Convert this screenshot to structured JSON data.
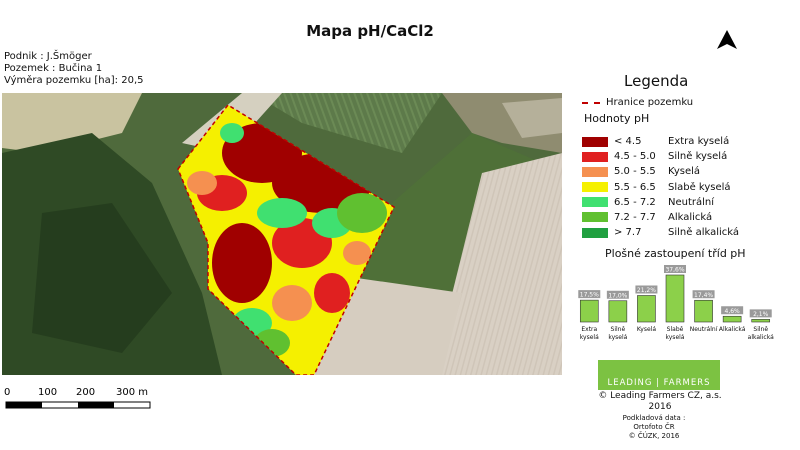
{
  "title": "Mapa pH/CaCl2",
  "info": {
    "podnik": "Podnik : J.Šmöger",
    "pozemek": "Pozemek : Bučina 1",
    "vymera": "Výměra pozemku [ha]: 20,5"
  },
  "legend": {
    "title": "Legenda",
    "boundary_label": "Hranice pozemku",
    "boundary_color": "#c00000",
    "values_title": "Hodnoty pH",
    "classes": [
      {
        "range": "< 4.5",
        "name": "Extra kyselá",
        "color": "#a00000"
      },
      {
        "range": "4.5 - 5.0",
        "name": "Silně kyselá",
        "color": "#e02020"
      },
      {
        "range": "5.0 - 5.5",
        "name": "Kyselá",
        "color": "#f59050"
      },
      {
        "range": "5.5 - 6.5",
        "name": "Slabě kyselá",
        "color": "#f5f000"
      },
      {
        "range": "6.5 - 7.2",
        "name": "Neutrální",
        "color": "#40e070"
      },
      {
        "range": "7.2 - 7.7",
        "name": "Alkalická",
        "color": "#60c030"
      },
      {
        "range": "> 7.7",
        "name": "Silně alkalická",
        "color": "#20a040"
      }
    ]
  },
  "chart_data": {
    "type": "bar",
    "title": "Plošné zastoupení tříd pH",
    "categories": [
      "Extra kyselá",
      "Silně kyselá",
      "Kyselá",
      "Slabě kyselá",
      "Neutrální",
      "Alkalická",
      "Silně alkalická"
    ],
    "values": [
      17.5,
      17.0,
      21.2,
      37.6,
      17.4,
      4.6,
      2.1
    ],
    "value_labels": [
      "17,5%",
      "17,0%",
      "21,2%",
      "37,6%",
      "17,4%",
      "4,6%",
      "2,1%"
    ],
    "bar_color": "#8cd04a",
    "ylim": [
      0,
      40
    ]
  },
  "scale_bar": {
    "labels": [
      "0",
      "100",
      "200",
      "300 m"
    ]
  },
  "logo": {
    "text": "LEADING | FARMERS",
    "color": "#7cc242"
  },
  "copyright": {
    "line1": "© Leading Farmers CZ, a.s.",
    "line2": "2016"
  },
  "source": {
    "line1": "Podkladová data :",
    "line2": "Ortofoto ČR",
    "line3": "© ČÚZK, 2016"
  }
}
